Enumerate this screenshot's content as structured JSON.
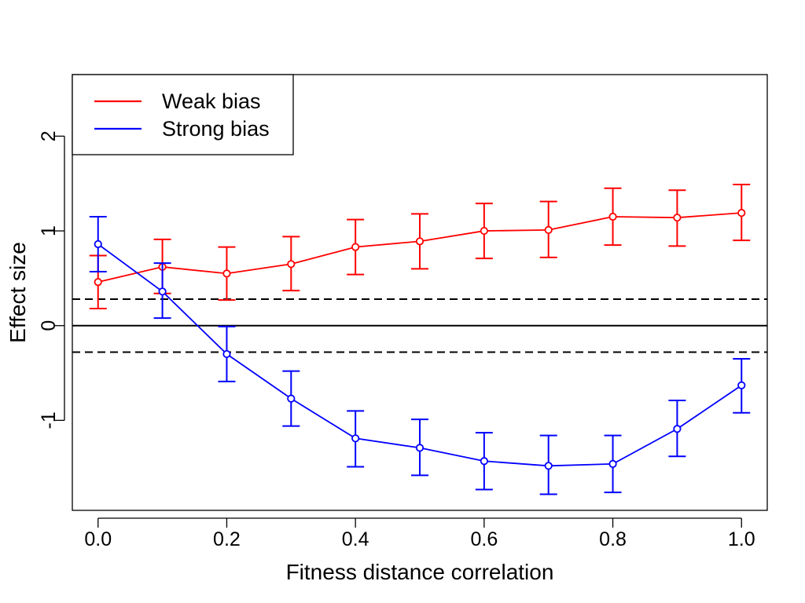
{
  "chart_data": {
    "type": "line",
    "title": "",
    "xlabel": "Fitness distance correlation",
    "ylabel": "Effect size",
    "xlim": [
      -0.04,
      1.04
    ],
    "ylim": [
      -1.95,
      2.65
    ],
    "x_ticks": [
      0.0,
      0.2,
      0.4,
      0.6,
      0.8,
      1.0
    ],
    "x_tick_labels": [
      "0.0",
      "0.2",
      "0.4",
      "0.6",
      "0.8",
      "1.0"
    ],
    "y_ticks": [
      -1,
      0,
      1,
      2
    ],
    "y_tick_labels": [
      "-1",
      "0",
      "1",
      "2"
    ],
    "reference_lines": [
      {
        "y": 0,
        "style": "solid",
        "color": "#000000"
      },
      {
        "y": 0.28,
        "style": "dashed",
        "color": "#000000"
      },
      {
        "y": -0.28,
        "style": "dashed",
        "color": "#000000"
      }
    ],
    "x": [
      0.0,
      0.1,
      0.2,
      0.3,
      0.4,
      0.5,
      0.6,
      0.7,
      0.8,
      0.9,
      1.0
    ],
    "series": [
      {
        "name": "Weak bias",
        "color": "#ff0000",
        "values": [
          0.46,
          0.62,
          0.55,
          0.65,
          0.83,
          0.89,
          1.0,
          1.01,
          1.15,
          1.14,
          1.19
        ],
        "lower": [
          0.18,
          0.34,
          0.27,
          0.37,
          0.54,
          0.6,
          0.71,
          0.72,
          0.85,
          0.84,
          0.9
        ],
        "upper": [
          0.74,
          0.91,
          0.83,
          0.94,
          1.12,
          1.18,
          1.29,
          1.31,
          1.45,
          1.43,
          1.49
        ]
      },
      {
        "name": "Strong bias",
        "color": "#0000ff",
        "values": [
          0.86,
          0.36,
          -0.3,
          -0.77,
          -1.19,
          -1.29,
          -1.43,
          -1.48,
          -1.46,
          -1.09,
          -0.63
        ],
        "lower": [
          0.57,
          0.08,
          -0.59,
          -1.06,
          -1.49,
          -1.58,
          -1.73,
          -1.78,
          -1.76,
          -1.38,
          -0.92
        ],
        "upper": [
          1.15,
          0.66,
          -0.01,
          -0.48,
          -0.9,
          -0.99,
          -1.13,
          -1.16,
          -1.16,
          -0.79,
          -0.35
        ]
      }
    ],
    "legend": {
      "position": "top-left",
      "entries": [
        "Weak bias",
        "Strong bias"
      ]
    }
  }
}
